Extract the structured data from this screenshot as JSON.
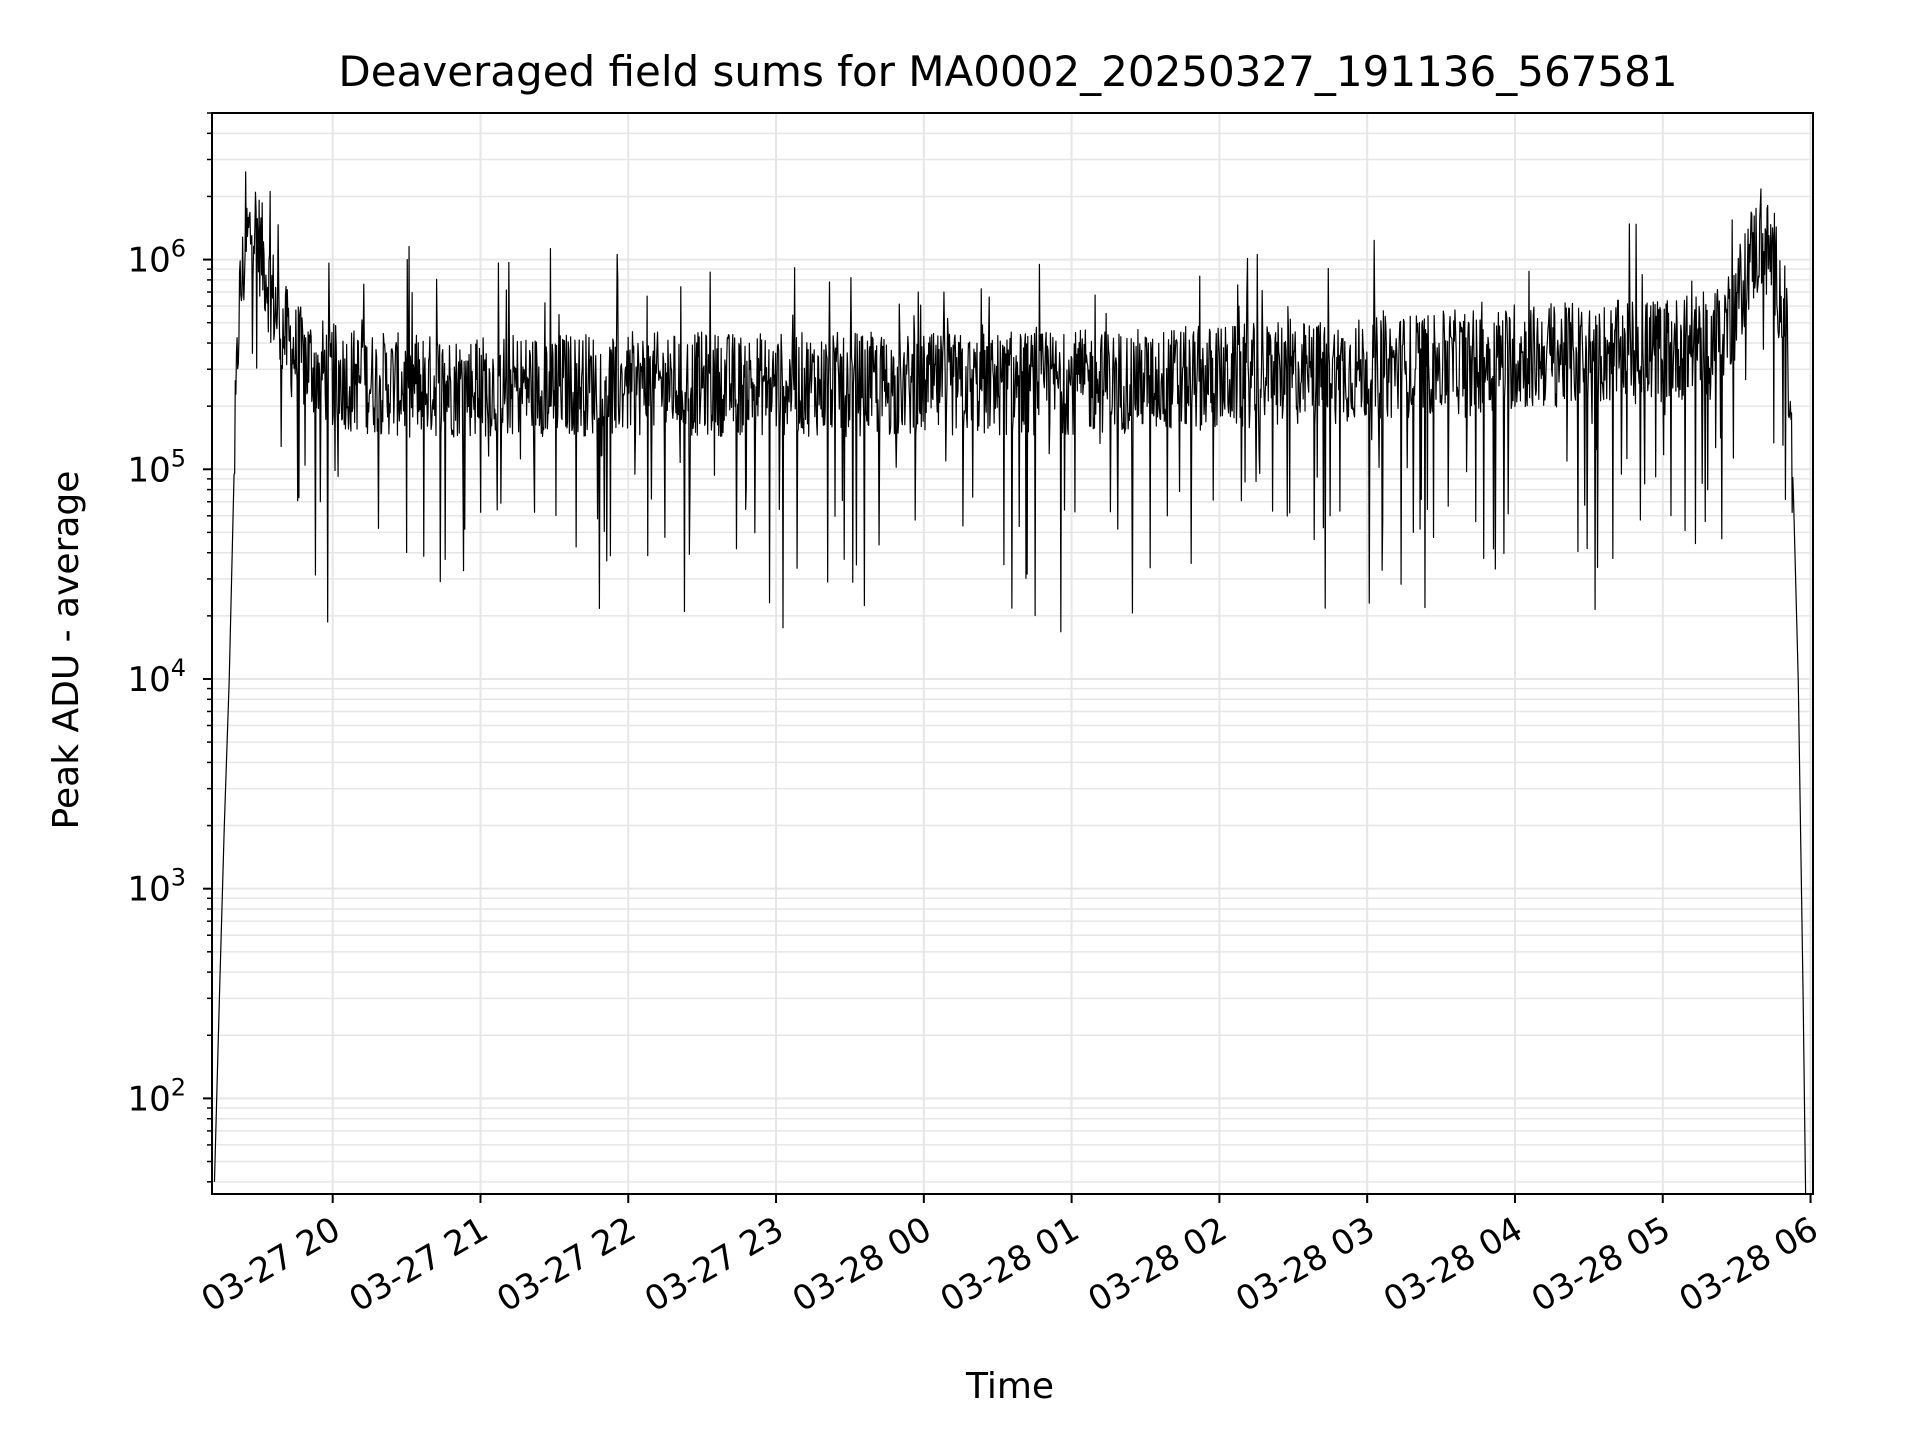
{
  "chart_data": {
    "type": "line",
    "title": "Deaveraged field sums for MA0002_20250327_191136_567581",
    "xlabel": "Time",
    "ylabel": "Peak ADU - average",
    "y_scale": "log",
    "ylim": [
      35,
      5000000
    ],
    "xlim": [
      "2025-03-27 19:11",
      "2025-03-28 06:01"
    ],
    "grid": true,
    "line_color": "#000000",
    "grid_color": "#e6e6e6",
    "x_ticks": [
      {
        "t": "2025-03-27 20:00",
        "label": "03-27 20"
      },
      {
        "t": "2025-03-27 21:00",
        "label": "03-27 21"
      },
      {
        "t": "2025-03-27 22:00",
        "label": "03-27 22"
      },
      {
        "t": "2025-03-27 23:00",
        "label": "03-27 23"
      },
      {
        "t": "2025-03-28 00:00",
        "label": "03-28 00"
      },
      {
        "t": "2025-03-28 01:00",
        "label": "03-28 01"
      },
      {
        "t": "2025-03-28 02:00",
        "label": "03-28 02"
      },
      {
        "t": "2025-03-28 03:00",
        "label": "03-28 03"
      },
      {
        "t": "2025-03-28 04:00",
        "label": "03-28 04"
      },
      {
        "t": "2025-03-28 05:00",
        "label": "03-28 05"
      },
      {
        "t": "2025-03-28 06:00",
        "label": "03-28 06"
      }
    ],
    "y_ticks": [
      {
        "value": 100,
        "base": "10",
        "exp": "2"
      },
      {
        "value": 1000,
        "base": "10",
        "exp": "3"
      },
      {
        "value": 10000,
        "base": "10",
        "exp": "4"
      },
      {
        "value": 100000,
        "base": "10",
        "exp": "5"
      },
      {
        "value": 1000000,
        "base": "10",
        "exp": "6"
      }
    ],
    "series": [
      {
        "x": [
          "2025-03-27 19:12",
          "2025-03-27 19:14",
          "2025-03-27 19:16",
          "2025-03-27 19:18",
          "2025-03-27 19:20",
          "2025-03-27 19:22",
          "2025-03-27 19:25",
          "2025-03-27 19:28",
          "2025-03-27 19:31",
          "2025-03-27 19:35",
          "2025-03-27 19:40",
          "2025-03-27 19:45",
          "2025-03-27 19:50",
          "2025-03-27 19:55",
          "2025-03-27 20:00",
          "2025-03-27 20:15",
          "2025-03-27 20:30",
          "2025-03-27 21:00",
          "2025-03-27 21:30",
          "2025-03-27 22:00",
          "2025-03-27 22:30",
          "2025-03-27 23:00",
          "2025-03-27 23:30",
          "2025-03-28 00:00",
          "2025-03-28 00:30",
          "2025-03-28 01:00",
          "2025-03-28 01:30",
          "2025-03-28 02:00",
          "2025-03-28 02:30",
          "2025-03-28 03:00",
          "2025-03-28 03:30",
          "2025-03-28 04:00",
          "2025-03-28 04:30",
          "2025-03-28 05:00",
          "2025-03-28 05:20",
          "2025-03-28 05:30",
          "2025-03-28 05:35",
          "2025-03-28 05:40",
          "2025-03-28 05:45",
          "2025-03-28 05:50",
          "2025-03-28 05:53",
          "2025-03-28 05:55",
          "2025-03-28 05:57",
          "2025-03-28 05:58"
        ],
        "y": [
          40,
          300,
          2000,
          10000,
          100000,
          600000,
          1200000,
          1500000,
          1100000,
          700000,
          450000,
          350000,
          320000,
          300000,
          280000,
          260000,
          250000,
          250000,
          255000,
          255000,
          255000,
          255000,
          255000,
          250000,
          255000,
          260000,
          265000,
          275000,
          285000,
          300000,
          320000,
          340000,
          355000,
          370000,
          400000,
          600000,
          1000000,
          1200000,
          1000000,
          500000,
          80000,
          10000,
          300,
          35
        ]
      }
    ]
  }
}
